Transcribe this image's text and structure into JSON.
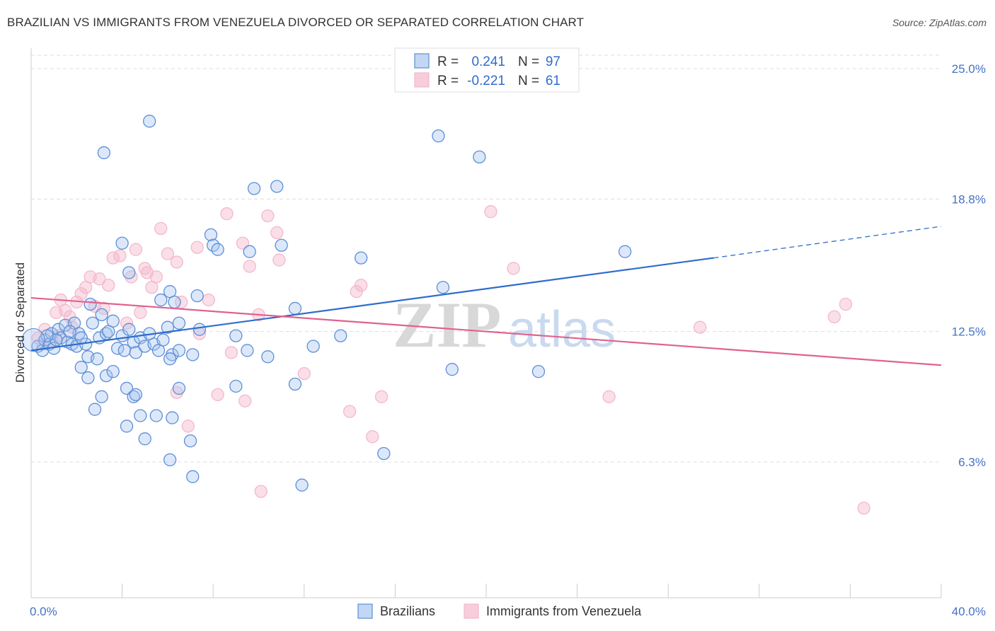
{
  "title": "BRAZILIAN VS IMMIGRANTS FROM VENEZUELA DIVORCED OR SEPARATED CORRELATION CHART",
  "source": "Source: ZipAtlas.com",
  "watermark": {
    "zip": "ZIP",
    "atlas": "atlas"
  },
  "colors": {
    "blue": "#2f6ccc",
    "blue_fill": "#a8c6f0",
    "pink": "#e0628e",
    "pink_fill": "#f4b8cc",
    "grid": "#dddddd",
    "tick_text": "#4472c4"
  },
  "legend": {
    "rows": [
      {
        "r_label": "R = ",
        "r_value": "0.241",
        "n_label": "N = ",
        "n_value": "97"
      },
      {
        "r_label": "R = ",
        "r_value": "-0.221",
        "n_label": "N = ",
        "n_value": "61"
      }
    ]
  },
  "chart_data": {
    "type": "scatter",
    "title": "BRAZILIAN VS IMMIGRANTS FROM VENEZUELA DIVORCED OR SEPARATED CORRELATION CHART",
    "xlabel": "",
    "ylabel": "Divorced or Separated",
    "xlim": [
      0,
      40
    ],
    "ylim": [
      0,
      26
    ],
    "x_tick_labels": [
      "0.0%",
      "40.0%"
    ],
    "y_ticks": [
      6.3,
      12.5,
      18.8,
      25.0
    ],
    "y_tick_labels": [
      "6.3%",
      "12.5%",
      "18.8%",
      "25.0%"
    ],
    "grid": true,
    "legend_position": "top-center",
    "series": [
      {
        "name": "Brazilians",
        "color": "#2f6ccc",
        "r": 0.241,
        "n": 97,
        "trend": {
          "x0": 0,
          "y0": 11.6,
          "x1": 30,
          "y1": 16.0,
          "dashed_to_x": 40,
          "dashed_to_y": 17.5
        },
        "points": [
          [
            0.3,
            11.8
          ],
          [
            0.5,
            11.6
          ],
          [
            0.6,
            12.1
          ],
          [
            0.8,
            11.9
          ],
          [
            0.9,
            12.4
          ],
          [
            1.0,
            11.7
          ],
          [
            1.2,
            12.6
          ],
          [
            1.3,
            12.2
          ],
          [
            1.5,
            12.8
          ],
          [
            1.6,
            12.0
          ],
          [
            1.8,
            11.9
          ],
          [
            1.9,
            12.9
          ],
          [
            2.0,
            11.8
          ],
          [
            2.1,
            12.4
          ],
          [
            2.2,
            10.8
          ],
          [
            2.4,
            11.9
          ],
          [
            2.5,
            11.3
          ],
          [
            2.6,
            13.8
          ],
          [
            2.7,
            12.9
          ],
          [
            2.9,
            11.2
          ],
          [
            3.0,
            12.2
          ],
          [
            3.1,
            13.3
          ],
          [
            3.3,
            12.4
          ],
          [
            3.4,
            12.5
          ],
          [
            3.6,
            13.0
          ],
          [
            3.8,
            11.7
          ],
          [
            4.0,
            12.3
          ],
          [
            4.1,
            11.6
          ],
          [
            4.3,
            12.6
          ],
          [
            4.5,
            12.0
          ],
          [
            4.6,
            11.5
          ],
          [
            4.8,
            12.2
          ],
          [
            5.0,
            11.8
          ],
          [
            5.2,
            12.4
          ],
          [
            5.4,
            11.9
          ],
          [
            5.6,
            11.6
          ],
          [
            5.8,
            12.1
          ],
          [
            6.0,
            12.7
          ],
          [
            6.2,
            11.4
          ],
          [
            6.5,
            12.9
          ],
          [
            3.2,
            21.0
          ],
          [
            5.2,
            22.5
          ],
          [
            4.0,
            16.7
          ],
          [
            4.3,
            15.3
          ],
          [
            5.7,
            14.0
          ],
          [
            6.1,
            14.4
          ],
          [
            6.3,
            13.9
          ],
          [
            7.3,
            14.2
          ],
          [
            7.9,
            17.1
          ],
          [
            8.0,
            16.6
          ],
          [
            8.2,
            16.4
          ],
          [
            9.6,
            16.3
          ],
          [
            9.8,
            19.3
          ],
          [
            10.8,
            19.4
          ],
          [
            11.0,
            16.6
          ],
          [
            14.5,
            16.0
          ],
          [
            17.9,
            21.8
          ],
          [
            19.7,
            20.8
          ],
          [
            18.1,
            14.6
          ],
          [
            26.1,
            16.3
          ],
          [
            11.6,
            13.6
          ],
          [
            13.6,
            12.3
          ],
          [
            12.4,
            11.8
          ],
          [
            9.0,
            12.3
          ],
          [
            9.5,
            11.6
          ],
          [
            10.4,
            11.3
          ],
          [
            11.6,
            10.0
          ],
          [
            18.5,
            10.7
          ],
          [
            22.3,
            10.6
          ],
          [
            7.1,
            11.4
          ],
          [
            6.1,
            11.2
          ],
          [
            2.5,
            10.3
          ],
          [
            3.3,
            10.4
          ],
          [
            3.6,
            10.6
          ],
          [
            4.2,
            9.8
          ],
          [
            4.5,
            9.4
          ],
          [
            4.6,
            9.5
          ],
          [
            3.1,
            9.4
          ],
          [
            2.8,
            8.8
          ],
          [
            4.2,
            8.0
          ],
          [
            4.8,
            8.5
          ],
          [
            5.5,
            8.5
          ],
          [
            6.2,
            8.4
          ],
          [
            5.0,
            7.4
          ],
          [
            7.0,
            7.3
          ],
          [
            6.1,
            6.4
          ],
          [
            6.5,
            9.8
          ],
          [
            7.1,
            5.6
          ],
          [
            9.0,
            9.9
          ],
          [
            11.9,
            5.2
          ],
          [
            15.5,
            6.7
          ],
          [
            6.5,
            11.6
          ],
          [
            7.4,
            12.6
          ],
          [
            2.2,
            12.2
          ],
          [
            1.1,
            12.1
          ],
          [
            0.7,
            12.3
          ],
          [
            1.7,
            12.5
          ]
        ]
      },
      {
        "name": "Immigrants from Venezuela",
        "color": "#e0628e",
        "r": -0.221,
        "n": 61,
        "trend": {
          "x0": 0,
          "y0": 14.1,
          "x1": 40,
          "y1": 10.9
        },
        "points": [
          [
            0.3,
            12.2
          ],
          [
            0.6,
            12.6
          ],
          [
            0.9,
            12.0
          ],
          [
            1.1,
            13.4
          ],
          [
            1.3,
            14.0
          ],
          [
            1.5,
            13.5
          ],
          [
            1.7,
            13.2
          ],
          [
            1.8,
            12.7
          ],
          [
            2.0,
            13.9
          ],
          [
            2.2,
            14.3
          ],
          [
            2.4,
            14.6
          ],
          [
            2.6,
            15.1
          ],
          [
            2.8,
            13.7
          ],
          [
            3.0,
            15.0
          ],
          [
            3.2,
            13.6
          ],
          [
            3.4,
            14.7
          ],
          [
            3.6,
            16.0
          ],
          [
            3.9,
            16.1
          ],
          [
            4.2,
            12.9
          ],
          [
            4.4,
            15.1
          ],
          [
            4.6,
            16.4
          ],
          [
            4.8,
            13.4
          ],
          [
            5.0,
            15.5
          ],
          [
            5.1,
            15.3
          ],
          [
            5.3,
            14.6
          ],
          [
            5.5,
            15.1
          ],
          [
            5.7,
            17.4
          ],
          [
            6.0,
            16.2
          ],
          [
            6.4,
            15.8
          ],
          [
            6.6,
            13.9
          ],
          [
            7.3,
            16.5
          ],
          [
            7.8,
            14.0
          ],
          [
            8.6,
            18.1
          ],
          [
            9.3,
            16.7
          ],
          [
            9.6,
            15.6
          ],
          [
            10.0,
            13.3
          ],
          [
            10.4,
            18.0
          ],
          [
            10.8,
            17.2
          ],
          [
            10.9,
            15.9
          ],
          [
            14.3,
            14.4
          ],
          [
            14.5,
            14.7
          ],
          [
            21.2,
            15.5
          ],
          [
            20.2,
            18.2
          ],
          [
            12.0,
            10.5
          ],
          [
            15.4,
            9.4
          ],
          [
            14.0,
            8.7
          ],
          [
            15.0,
            7.5
          ],
          [
            9.4,
            9.2
          ],
          [
            8.2,
            9.5
          ],
          [
            6.4,
            9.6
          ],
          [
            6.9,
            8.0
          ],
          [
            8.8,
            11.5
          ],
          [
            7.4,
            12.4
          ],
          [
            25.4,
            9.4
          ],
          [
            29.4,
            12.7
          ],
          [
            35.3,
            13.2
          ],
          [
            35.8,
            13.8
          ],
          [
            36.6,
            4.1
          ],
          [
            10.1,
            4.9
          ],
          [
            0.5,
            11.9
          ],
          [
            1.2,
            12.3
          ]
        ]
      }
    ]
  },
  "bottom_legend": [
    {
      "label": "Brazilians"
    },
    {
      "label": "Immigrants from Venezuela"
    }
  ]
}
